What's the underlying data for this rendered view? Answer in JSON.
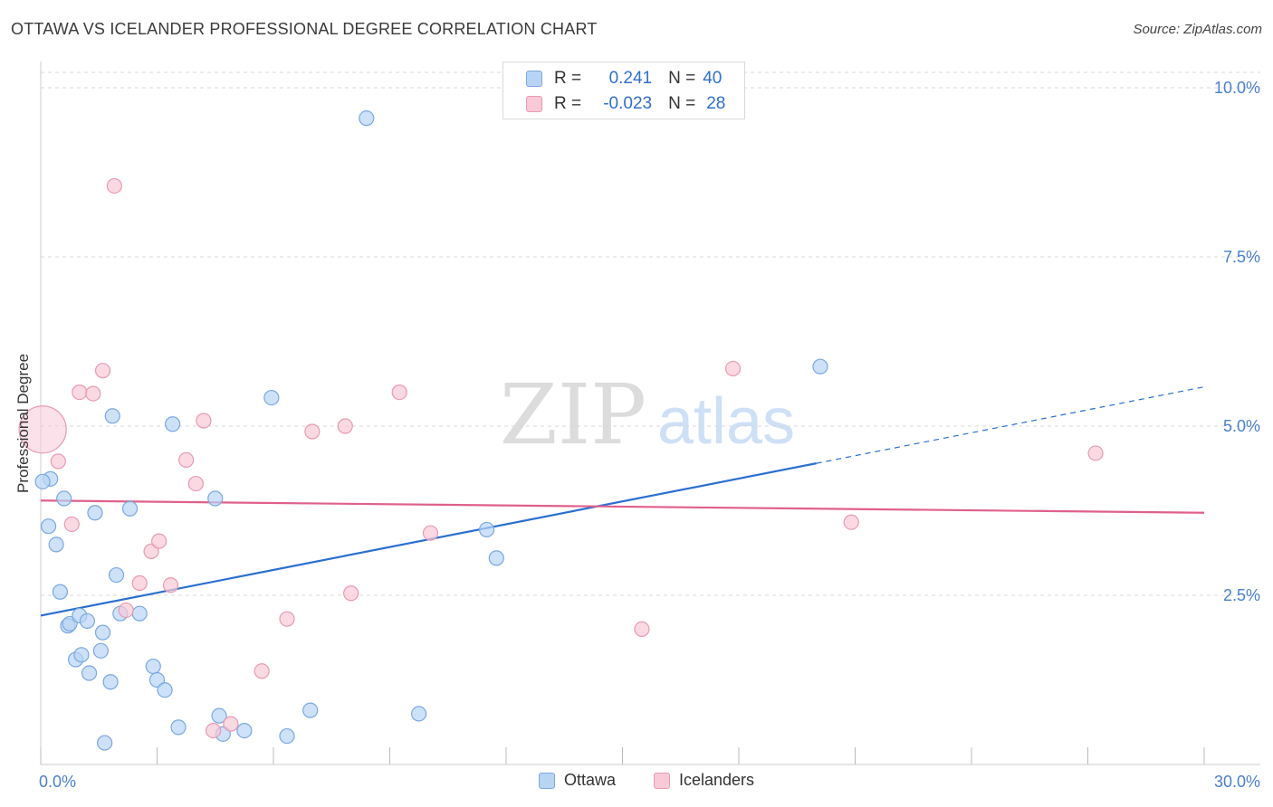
{
  "header": {
    "title": "OTTAWA VS ICELANDER PROFESSIONAL DEGREE CORRELATION CHART",
    "source": "Source: ZipAtlas.com"
  },
  "watermark": {
    "zip": "ZIP",
    "atlas": "atlas"
  },
  "stats": {
    "ottawa": {
      "r_label": "R =",
      "r_value": "0.241",
      "n_label": "N =",
      "n_value": "40"
    },
    "icelanders": {
      "r_label": "R =",
      "r_value": "-0.023",
      "n_label": "N =",
      "n_value": "28"
    }
  },
  "legend": {
    "ottawa": "Ottawa",
    "icelanders": "Icelanders"
  },
  "colors": {
    "ottawa_fill": "#b8d4f5",
    "ottawa_stroke": "#7aa8e0",
    "ottawa_line": "#2a6fd0",
    "icelanders_fill": "#f8c9d7",
    "icelanders_stroke": "#e89ab2",
    "icelanders_line": "#e0608a",
    "tick_label": "#4a7fd0",
    "grid": "#d8d8d8"
  },
  "chart_data": {
    "type": "scatter",
    "title": "OTTAWA VS ICELANDER PROFESSIONAL DEGREE CORRELATION CHART",
    "xlabel": "",
    "ylabel": "Professional Degree",
    "xlim": [
      0,
      30
    ],
    "ylim": [
      0,
      10.5
    ],
    "x_tick_labels": [
      {
        "value": 0,
        "label": "0.0%"
      },
      {
        "value": 30,
        "label": "30.0%"
      }
    ],
    "x_minor_ticks": [
      0,
      3,
      6,
      9,
      12,
      15,
      18,
      21,
      24,
      27,
      30
    ],
    "y_ticks": [
      {
        "value": 2.5,
        "label": "2.5%"
      },
      {
        "value": 5.0,
        "label": "5.0%"
      },
      {
        "value": 7.5,
        "label": "7.5%"
      },
      {
        "value": 10.0,
        "label": "10.0%"
      }
    ],
    "grid": true,
    "legend_position": "bottom-center",
    "series": [
      {
        "name": "Ottawa",
        "points": [
          [
            0.25,
            4.22
          ],
          [
            0.2,
            3.52
          ],
          [
            0.4,
            3.25
          ],
          [
            0.6,
            3.93
          ],
          [
            0.5,
            2.55
          ],
          [
            0.7,
            2.05
          ],
          [
            0.75,
            2.08
          ],
          [
            1.0,
            2.2
          ],
          [
            1.2,
            2.12
          ],
          [
            0.9,
            1.55
          ],
          [
            1.05,
            1.62
          ],
          [
            1.25,
            1.35
          ],
          [
            1.4,
            3.72
          ],
          [
            1.6,
            1.95
          ],
          [
            1.55,
            1.68
          ],
          [
            1.65,
            0.32
          ],
          [
            1.8,
            1.22
          ],
          [
            1.85,
            5.15
          ],
          [
            1.95,
            2.8
          ],
          [
            2.05,
            2.23
          ],
          [
            2.3,
            3.78
          ],
          [
            2.55,
            2.23
          ],
          [
            2.9,
            1.45
          ],
          [
            3.0,
            1.25
          ],
          [
            3.2,
            1.1
          ],
          [
            3.4,
            5.03
          ],
          [
            3.55,
            0.55
          ],
          [
            4.5,
            3.93
          ],
          [
            4.6,
            0.72
          ],
          [
            4.7,
            0.45
          ],
          [
            5.25,
            0.5
          ],
          [
            5.95,
            5.42
          ],
          [
            6.35,
            0.42
          ],
          [
            6.95,
            0.8
          ],
          [
            8.4,
            9.55
          ],
          [
            9.75,
            0.75
          ],
          [
            11.5,
            3.47
          ],
          [
            11.75,
            3.05
          ],
          [
            20.1,
            5.88
          ],
          [
            0.05,
            4.18
          ]
        ]
      },
      {
        "name": "Icelanders",
        "points": [
          [
            0.05,
            4.95
          ],
          [
            0.45,
            4.48
          ],
          [
            0.8,
            3.55
          ],
          [
            1.0,
            5.5
          ],
          [
            1.35,
            5.48
          ],
          [
            1.6,
            5.82
          ],
          [
            2.2,
            2.28
          ],
          [
            2.55,
            2.68
          ],
          [
            2.85,
            3.15
          ],
          [
            3.05,
            3.3
          ],
          [
            3.35,
            2.65
          ],
          [
            3.75,
            4.5
          ],
          [
            4.0,
            4.15
          ],
          [
            4.2,
            5.08
          ],
          [
            4.45,
            0.5
          ],
          [
            4.9,
            0.6
          ],
          [
            5.7,
            1.38
          ],
          [
            6.35,
            2.15
          ],
          [
            7.0,
            4.92
          ],
          [
            7.85,
            5.0
          ],
          [
            8.0,
            2.53
          ],
          [
            9.25,
            5.5
          ],
          [
            10.05,
            3.42
          ],
          [
            15.5,
            2.0
          ],
          [
            17.85,
            5.85
          ],
          [
            20.9,
            3.58
          ],
          [
            27.2,
            4.6
          ],
          [
            1.9,
            8.55
          ]
        ]
      }
    ],
    "trendlines": [
      {
        "name": "Ottawa",
        "x": [
          0,
          20
        ],
        "y": [
          2.2,
          4.45
        ],
        "dashed_extension": {
          "x": [
            20,
            30
          ],
          "y": [
            4.45,
            5.58
          ]
        }
      },
      {
        "name": "Icelanders",
        "x": [
          0,
          30
        ],
        "y": [
          3.9,
          3.72
        ]
      }
    ]
  }
}
